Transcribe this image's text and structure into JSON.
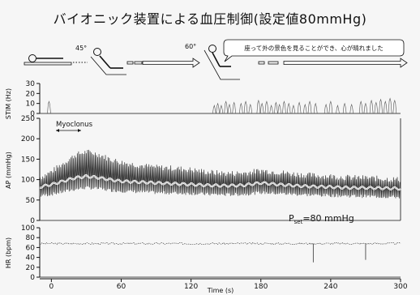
{
  "title": "バイオニック装置による血圧制御(設定値80mmHg)",
  "posture": {
    "angle1": "45°",
    "angle2": "60°",
    "speech": "座って外の景色を見ることができ、心が晴れました"
  },
  "chart_data": {
    "type": "line",
    "x_label": "Time (s)",
    "x_ticks": [
      "0",
      "60",
      "120",
      "180",
      "240",
      "300"
    ],
    "xlim": [
      -10,
      300
    ],
    "panels": [
      {
        "name": "STIM",
        "ylabel": "STIM (Hz)",
        "ylim": [
          0,
          30
        ],
        "yticks": [
          "0",
          "10",
          "20",
          "30"
        ],
        "bursts": [
          [
            -2,
            12
          ],
          [
            140,
            8
          ],
          [
            143,
            10
          ],
          [
            146,
            8
          ],
          [
            150,
            12
          ],
          [
            153,
            9
          ],
          [
            157,
            11
          ],
          [
            163,
            10
          ],
          [
            167,
            12
          ],
          [
            171,
            9
          ],
          [
            178,
            13
          ],
          [
            181,
            10
          ],
          [
            185,
            12
          ],
          [
            189,
            8
          ],
          [
            193,
            11
          ],
          [
            196,
            9
          ],
          [
            200,
            12
          ],
          [
            204,
            10
          ],
          [
            208,
            8
          ],
          [
            213,
            11
          ],
          [
            218,
            9
          ],
          [
            222,
            12
          ],
          [
            227,
            10
          ],
          [
            236,
            9
          ],
          [
            240,
            12
          ],
          [
            246,
            8
          ],
          [
            252,
            10
          ],
          [
            258,
            9
          ],
          [
            266,
            12
          ],
          [
            270,
            10
          ],
          [
            275,
            13
          ],
          [
            279,
            11
          ],
          [
            283,
            14
          ],
          [
            287,
            12
          ],
          [
            291,
            15
          ],
          [
            295,
            13
          ]
        ]
      },
      {
        "name": "AP",
        "ylabel": "AP (mmHg)",
        "ylim": [
          0,
          250
        ],
        "yticks": [
          "0",
          "50",
          "100",
          "150",
          "200",
          "250"
        ],
        "annotation": "Myoclonus",
        "pset_label": "P",
        "pset_sub": "set",
        "pset_value": "=80 mmHg",
        "systolic": [
          [
            -10,
            105
          ],
          [
            0,
            120
          ],
          [
            10,
            140
          ],
          [
            20,
            160
          ],
          [
            30,
            168
          ],
          [
            40,
            162
          ],
          [
            50,
            150
          ],
          [
            60,
            142
          ],
          [
            75,
            135
          ],
          [
            90,
            130
          ],
          [
            105,
            128
          ],
          [
            120,
            124
          ],
          [
            135,
            118
          ],
          [
            150,
            115
          ],
          [
            165,
            116
          ],
          [
            180,
            122
          ],
          [
            195,
            118
          ],
          [
            210,
            113
          ],
          [
            225,
            110
          ],
          [
            240,
            108
          ],
          [
            255,
            105
          ],
          [
            270,
            104
          ],
          [
            285,
            102
          ],
          [
            300,
            100
          ]
        ],
        "mean": [
          [
            -10,
            82
          ],
          [
            0,
            88
          ],
          [
            10,
            96
          ],
          [
            20,
            104
          ],
          [
            30,
            108
          ],
          [
            40,
            105
          ],
          [
            50,
            100
          ],
          [
            60,
            96
          ],
          [
            75,
            94
          ],
          [
            90,
            92
          ],
          [
            105,
            90
          ],
          [
            120,
            88
          ],
          [
            135,
            86
          ],
          [
            150,
            85
          ],
          [
            165,
            86
          ],
          [
            180,
            92
          ],
          [
            195,
            88
          ],
          [
            210,
            85
          ],
          [
            225,
            83
          ],
          [
            240,
            82
          ],
          [
            255,
            80
          ],
          [
            270,
            80
          ],
          [
            285,
            79
          ],
          [
            300,
            78
          ]
        ],
        "diastolic": [
          [
            -10,
            60
          ],
          [
            0,
            64
          ],
          [
            10,
            70
          ],
          [
            20,
            76
          ],
          [
            30,
            80
          ],
          [
            40,
            78
          ],
          [
            50,
            74
          ],
          [
            60,
            72
          ],
          [
            75,
            70
          ],
          [
            90,
            68
          ],
          [
            105,
            67
          ],
          [
            120,
            66
          ],
          [
            135,
            64
          ],
          [
            150,
            63
          ],
          [
            165,
            64
          ],
          [
            180,
            68
          ],
          [
            195,
            66
          ],
          [
            210,
            64
          ],
          [
            225,
            62
          ],
          [
            240,
            61
          ],
          [
            255,
            60
          ],
          [
            270,
            59
          ],
          [
            285,
            58
          ],
          [
            300,
            57
          ]
        ]
      },
      {
        "name": "HR",
        "ylabel": "HR (bpm)",
        "ylim": [
          0,
          100
        ],
        "yticks": [
          "0",
          "20",
          "40",
          "60",
          "80",
          "100"
        ],
        "level": 68,
        "dips": [
          [
            225,
            30
          ],
          [
            270,
            35
          ]
        ]
      }
    ]
  }
}
